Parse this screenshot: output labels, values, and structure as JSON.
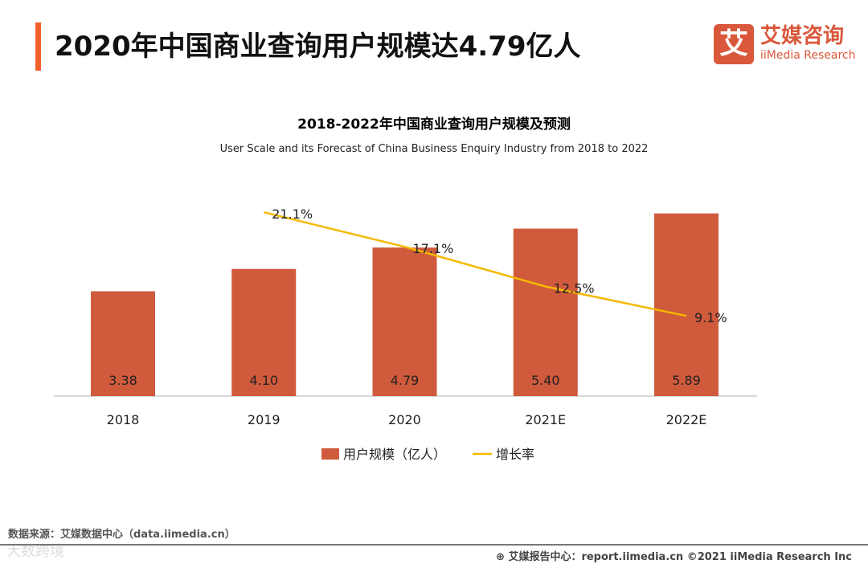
{
  "header": {
    "title": "2020年中国商业查询用户规模达4.79亿人"
  },
  "logo": {
    "mark": "艾",
    "name_cn": "艾媒咨询",
    "name_en": "iiMedia Research"
  },
  "chart_data": {
    "type": "bar",
    "title": "2018-2022年中国商业查询用户规模及预测",
    "subtitle": "User Scale and its Forecast of China Business Enquiry Industry from 2018 to 2022",
    "categories": [
      "2018",
      "2019",
      "2020",
      "2021E",
      "2022E"
    ],
    "series": [
      {
        "name": "用户规模（亿人）",
        "type": "bar",
        "color": "#d05a3c",
        "values": [
          3.38,
          4.1,
          4.79,
          5.4,
          5.89
        ],
        "labels": [
          "3.38",
          "4.10",
          "4.79",
          "5.40",
          "5.89"
        ]
      },
      {
        "name": "增长率",
        "type": "line",
        "color": "#f5b800",
        "values": [
          null,
          21.1,
          17.1,
          12.5,
          9.1
        ],
        "labels": [
          "",
          "21.1%",
          "17.1%",
          "12.5%",
          "9.1%"
        ]
      }
    ],
    "legend": "bottom",
    "grid": false
  },
  "footer": {
    "source": "数据来源：艾媒数据中心（data.iimedia.cn）",
    "watermark": "大数跨境",
    "copyright": "艾媒报告中心：report.iimedia.cn ©2021  iiMedia Research  Inc"
  }
}
